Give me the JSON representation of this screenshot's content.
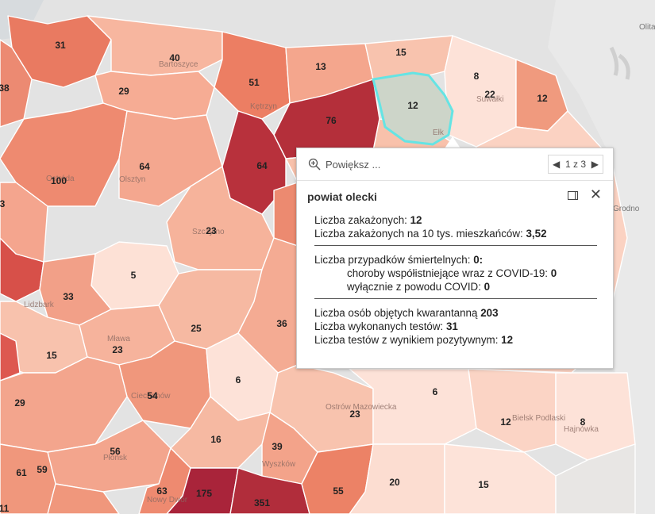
{
  "map": {
    "labels": [
      "31",
      "40",
      "38",
      "29",
      "51",
      "13",
      "15",
      "8",
      "22",
      "12",
      "12",
      "76",
      "64",
      "100",
      "64",
      "23",
      "5",
      "3",
      "33",
      "25",
      "36",
      "15",
      "23",
      "54",
      "6",
      "6",
      "29",
      "23",
      "12",
      "8",
      "16",
      "39",
      "56",
      "61",
      "59",
      "63",
      "175",
      "351",
      "55",
      "20",
      "15",
      "11"
    ],
    "places": [
      "Olsztyn",
      "Ostróda",
      "Kętrzyn",
      "Bartoszyce",
      "Szczytno",
      "Lidzbark",
      "Mława",
      "Ciechanów",
      "Ostrów Mazowiecka",
      "Bielsk Podlaski",
      "Hajnówka",
      "Płońsk",
      "Wyszków",
      "Nowy Dwór",
      "Suwałki",
      "Ełk",
      "Olita",
      "Grodno"
    ],
    "colors": {
      "lightest": "#fde2d8",
      "light": "#f7c0aa",
      "medium": "#f09a7e",
      "strong": "#e46c57",
      "dark": "#b7303b",
      "selected": "#cdd5c9",
      "highlight": "#65e4e4"
    }
  },
  "popup": {
    "zoom_label": "Powiększ ...",
    "pager": "1 z 3",
    "title": "powiat olecki",
    "lines": {
      "l1_label": "Liczba zakażonych: ",
      "l1_value": "12",
      "l2_label": "Liczba zakażonych na 10 tys. mieszkańców: ",
      "l2_value": "3,52",
      "l3_label": "Liczba przypadków śmiertelnych: ",
      "l3_value": "0:",
      "l4_label": "choroby współistniejące wraz z COVID-19: ",
      "l4_value": "0",
      "l5_label": "wyłącznie z powodu COVID: ",
      "l5_value": "0",
      "l6_label": "Liczba osób objętych kwarantanną ",
      "l6_value": "203",
      "l7_label": "Liczba wykonanych testów: ",
      "l7_value": "31",
      "l8_label": "Liczba testów z wynikiem pozytywnym: ",
      "l8_value": "12"
    }
  }
}
